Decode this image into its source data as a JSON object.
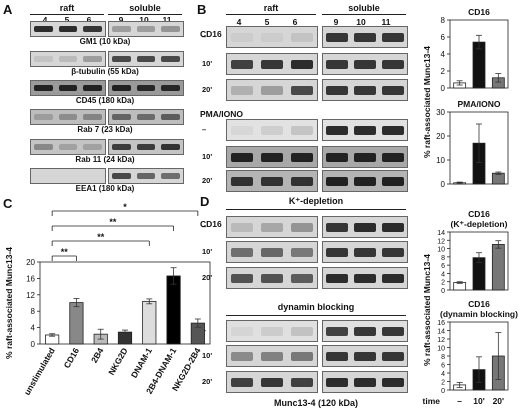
{
  "panelA": {
    "label": "A",
    "header_raft": "raft",
    "header_soluble": "soluble",
    "lanes_raft": [
      "4",
      "5",
      "6"
    ],
    "lanes_soluble": [
      "9",
      "10",
      "11"
    ],
    "blots": [
      "GM1 (10 kDa)",
      "β-tubulin (55 kDa)",
      "CD45 (180 kDa)",
      "Rab 7 (23 kDa)",
      "Rab 11 (24 kDa)",
      "EEA1 (180 kDa)"
    ]
  },
  "panelB": {
    "label": "B",
    "header_raft": "raft",
    "header_soluble": "soluble",
    "lanes_raft": [
      "4",
      "5",
      "6"
    ],
    "lanes_soluble": [
      "9",
      "10",
      "11"
    ],
    "group1": "CD16",
    "group2": "PMA/IONO",
    "rows": [
      "–",
      "10'",
      "20'"
    ]
  },
  "panelC": {
    "label": "C"
  },
  "panelD": {
    "label": "D",
    "kdep": "K⁺-depletion",
    "dyn": "dynamin blocking",
    "group1": "CD16",
    "rows": [
      "–",
      "10'",
      "20'"
    ],
    "footer": "Munc13-4 (120 kDa)"
  },
  "time_axis": {
    "label": "time",
    "ticks": [
      "–",
      "10'",
      "20'"
    ]
  },
  "chart_data": [
    {
      "type": "bar",
      "title": "CD16",
      "ylabel": "% raft-associated Munc13-4",
      "categories": [
        "–",
        "10'",
        "20'"
      ],
      "values": [
        0.6,
        5.4,
        1.2
      ],
      "errors": [
        0.25,
        0.8,
        0.5
      ],
      "ylim": [
        0,
        8
      ],
      "yticks": [
        "0",
        "2",
        "4",
        "6",
        "8"
      ],
      "colors": [
        "#ffffff",
        "#111111",
        "#777777"
      ]
    },
    {
      "type": "bar",
      "title": "PMA/IONO",
      "ylabel": "% raft-associated Munc13-4",
      "categories": [
        "–",
        "10'",
        "20'"
      ],
      "values": [
        0.5,
        17,
        4.5
      ],
      "errors": [
        0.3,
        8,
        0.5
      ],
      "ylim": [
        0,
        30
      ],
      "yticks": [
        "0",
        "10",
        "20",
        "30"
      ],
      "colors": [
        "#ffffff",
        "#111111",
        "#777777"
      ]
    },
    {
      "type": "bar",
      "ylabel": "% raft-associated Munc13-4",
      "categories": [
        "unstimulated",
        "CD16",
        "2B4",
        "NKG2D",
        "DNAM-1",
        "2B4-DNAM-1",
        "NKG2D-2B4"
      ],
      "values": [
        2.2,
        10.1,
        2.4,
        2.9,
        10.4,
        16.6,
        5.1
      ],
      "errors": [
        0.3,
        1.0,
        1.2,
        0.5,
        0.6,
        2.0,
        1.0
      ],
      "ylim": [
        0,
        20
      ],
      "yticks": [
        "0",
        "4",
        "8",
        "12",
        "16",
        "20"
      ],
      "colors": [
        "#ffffff",
        "#888888",
        "#bbbbbb",
        "#333333",
        "#dddddd",
        "#000000",
        "#555555"
      ],
      "significance": [
        {
          "from": 0,
          "to": 1,
          "label": "**"
        },
        {
          "from": 0,
          "to": 4,
          "label": "**"
        },
        {
          "from": 0,
          "to": 5,
          "label": "**"
        },
        {
          "from": 0,
          "to": 6,
          "label": "*"
        }
      ]
    },
    {
      "type": "bar",
      "title": "CD16 (K⁺-depletion)",
      "ylabel": "% raft-associated Munc13-4",
      "categories": [
        "–",
        "10'",
        "20'"
      ],
      "values": [
        1.8,
        7.8,
        11.0
      ],
      "errors": [
        0.2,
        1.2,
        0.9
      ],
      "ylim": [
        0,
        14
      ],
      "yticks": [
        "0",
        "2",
        "4",
        "6",
        "8",
        "10",
        "12",
        "14"
      ],
      "colors": [
        "#ffffff",
        "#111111",
        "#777777"
      ]
    },
    {
      "type": "bar",
      "title": "CD16 (dynamin blocking)",
      "ylabel": "% raft-associated Munc13-4",
      "categories": [
        "–",
        "10'",
        "20'"
      ],
      "values": [
        1.2,
        4.8,
        8.0
      ],
      "errors": [
        0.6,
        3.0,
        5.5
      ],
      "ylim": [
        0,
        16
      ],
      "yticks": [
        "0",
        "2",
        "4",
        "6",
        "8",
        "10",
        "12",
        "14",
        "16"
      ],
      "colors": [
        "#ffffff",
        "#111111",
        "#777777"
      ]
    }
  ]
}
